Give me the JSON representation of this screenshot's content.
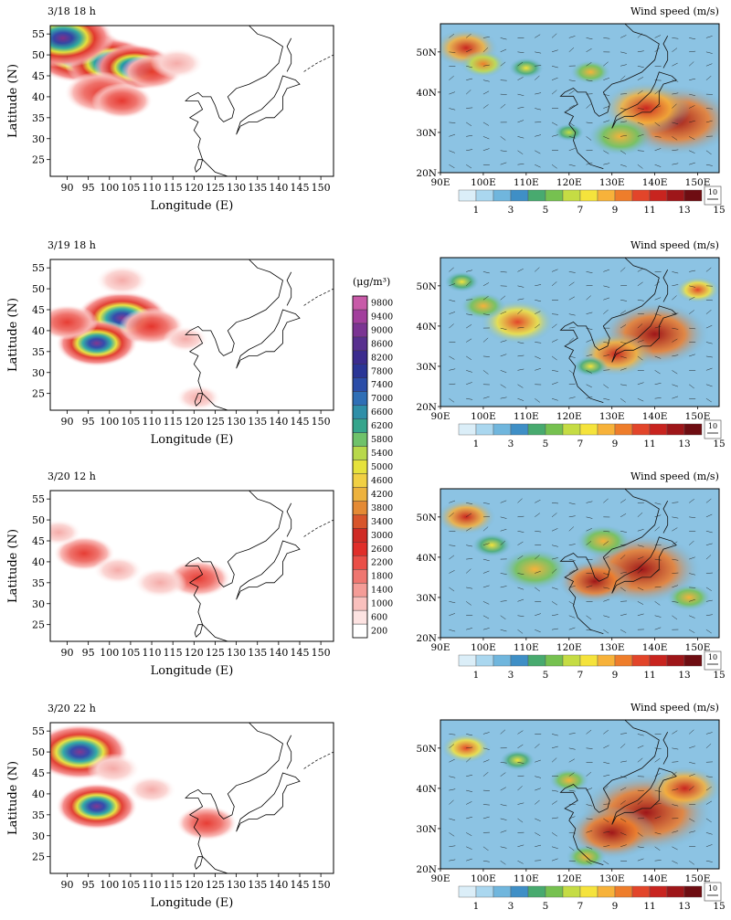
{
  "conc_axes": {
    "xlabel": "Longitude (E)",
    "ylabel": "Latitude (N)",
    "xticks": [
      90,
      95,
      100,
      105,
      110,
      115,
      120,
      125,
      130,
      135,
      140,
      145,
      150
    ],
    "yticks": [
      25,
      30,
      35,
      40,
      45,
      50,
      55
    ],
    "xlim": [
      86,
      153
    ],
    "ylim": [
      21,
      57
    ]
  },
  "wind_axes": {
    "title": "Wind speed (m/s)",
    "xticks": [
      "90E",
      "100E",
      "110E",
      "120E",
      "130E",
      "140E",
      "150E"
    ],
    "yticks": [
      "20N",
      "30N",
      "40N",
      "50N"
    ],
    "colorbar_ticks": [
      "1",
      "3",
      "5",
      "7",
      "9",
      "11",
      "13",
      "15"
    ],
    "colorbar_colors": [
      "#dbeef8",
      "#aad7ef",
      "#70b6dd",
      "#3f8fc6",
      "#48aa6f",
      "#76c150",
      "#c5dc44",
      "#f5e33c",
      "#f7b23a",
      "#ee7d2b",
      "#e2452a",
      "#c8241f",
      "#9e1619",
      "#6e0d12"
    ],
    "ref_vector": "10"
  },
  "colorbar": {
    "unit": "(μg/m³)",
    "ticks": [
      "200",
      "600",
      "1000",
      "1400",
      "1800",
      "2200",
      "2600",
      "3000",
      "3400",
      "3800",
      "4200",
      "4600",
      "5000",
      "5400",
      "5800",
      "6200",
      "6600",
      "7000",
      "7400",
      "7800",
      "8200",
      "8600",
      "9000",
      "9400",
      "9800"
    ]
  },
  "panels": [
    {
      "label": "3/18 18 h"
    },
    {
      "label": "3/19 18 h"
    },
    {
      "label": "3/20 12 h"
    },
    {
      "label": "3/20 22 h"
    }
  ],
  "chart_data": [
    {
      "type": "heatmap",
      "title": "3/18 18 h",
      "xlabel": "Longitude (E)",
      "ylabel": "Latitude (N)",
      "xlim": [
        86,
        153
      ],
      "ylim": [
        21,
        57
      ],
      "blobs": [
        {
          "lon": 93,
          "lat": 50,
          "level": 0.8
        },
        {
          "lon": 100,
          "lat": 48,
          "level": 0.7
        },
        {
          "lon": 106,
          "lat": 47,
          "level": 0.6
        },
        {
          "lon": 98,
          "lat": 41,
          "level": 0.5
        },
        {
          "lon": 110,
          "lat": 46,
          "level": 0.35
        },
        {
          "lon": 89,
          "lat": 54,
          "level": 0.85
        },
        {
          "lon": 116,
          "lat": 48,
          "level": 0.25
        },
        {
          "lon": 103,
          "lat": 39,
          "level": 0.35
        }
      ]
    },
    {
      "type": "heatmap",
      "title": "3/19 18 h",
      "xlabel": "Longitude (E)",
      "ylabel": "Latitude (N)",
      "xlim": [
        86,
        153
      ],
      "ylim": [
        21,
        57
      ],
      "blobs": [
        {
          "lon": 103,
          "lat": 43,
          "level": 0.75
        },
        {
          "lon": 97,
          "lat": 37,
          "level": 0.6
        },
        {
          "lon": 90,
          "lat": 42,
          "level": 0.35
        },
        {
          "lon": 110,
          "lat": 41,
          "level": 0.4
        },
        {
          "lon": 103,
          "lat": 52,
          "level": 0.25
        },
        {
          "lon": 118,
          "lat": 38,
          "level": 0.15
        },
        {
          "lon": 121,
          "lat": 24,
          "level": 0.15
        }
      ]
    },
    {
      "type": "heatmap",
      "title": "3/20 12 h",
      "xlabel": "Longitude (E)",
      "ylabel": "Latitude (N)",
      "xlim": [
        86,
        153
      ],
      "ylim": [
        21,
        57
      ],
      "blobs": [
        {
          "lon": 94,
          "lat": 42,
          "level": 0.35
        },
        {
          "lon": 121,
          "lat": 36,
          "level": 0.4
        },
        {
          "lon": 112,
          "lat": 35,
          "level": 0.25
        },
        {
          "lon": 102,
          "lat": 38,
          "level": 0.2
        },
        {
          "lon": 88,
          "lat": 47,
          "level": 0.15
        }
      ]
    },
    {
      "type": "heatmap",
      "title": "3/20 22 h",
      "xlabel": "Longitude (E)",
      "ylabel": "Latitude (N)",
      "xlim": [
        86,
        153
      ],
      "ylim": [
        21,
        57
      ],
      "blobs": [
        {
          "lon": 93,
          "lat": 50,
          "level": 0.8
        },
        {
          "lon": 97,
          "lat": 37,
          "level": 0.6
        },
        {
          "lon": 110,
          "lat": 41,
          "level": 0.2
        },
        {
          "lon": 123,
          "lat": 33,
          "level": 0.35
        },
        {
          "lon": 101,
          "lat": 46,
          "level": 0.25
        }
      ]
    }
  ]
}
